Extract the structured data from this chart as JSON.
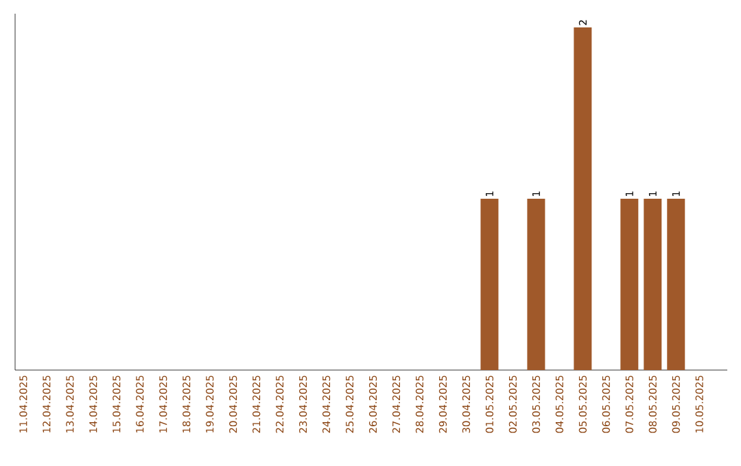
{
  "chart_data": {
    "type": "bar",
    "categories": [
      "11.04.2025",
      "12.04.2025",
      "13.04.2025",
      "14.04.2025",
      "15.04.2025",
      "16.04.2025",
      "17.04.2025",
      "18.04.2025",
      "19.04.2025",
      "20.04.2025",
      "21.04.2025",
      "22.04.2025",
      "23.04.2025",
      "24.04.2025",
      "25.04.2025",
      "26.04.2025",
      "27.04.2025",
      "28.04.2025",
      "29.04.2025",
      "30.04.2025",
      "01.05.2025",
      "02.05.2025",
      "03.05.2025",
      "04.05.2025",
      "05.05.2025",
      "06.05.2025",
      "07.05.2025",
      "08.05.2025",
      "09.05.2025",
      "10.05.2025"
    ],
    "values": [
      null,
      null,
      null,
      null,
      null,
      null,
      null,
      null,
      null,
      null,
      null,
      null,
      null,
      null,
      null,
      null,
      null,
      null,
      null,
      null,
      1,
      null,
      1,
      null,
      2,
      null,
      1,
      1,
      1,
      null
    ],
    "data_labels": true,
    "color": "#a0592a",
    "tick_labels": "x"
  }
}
